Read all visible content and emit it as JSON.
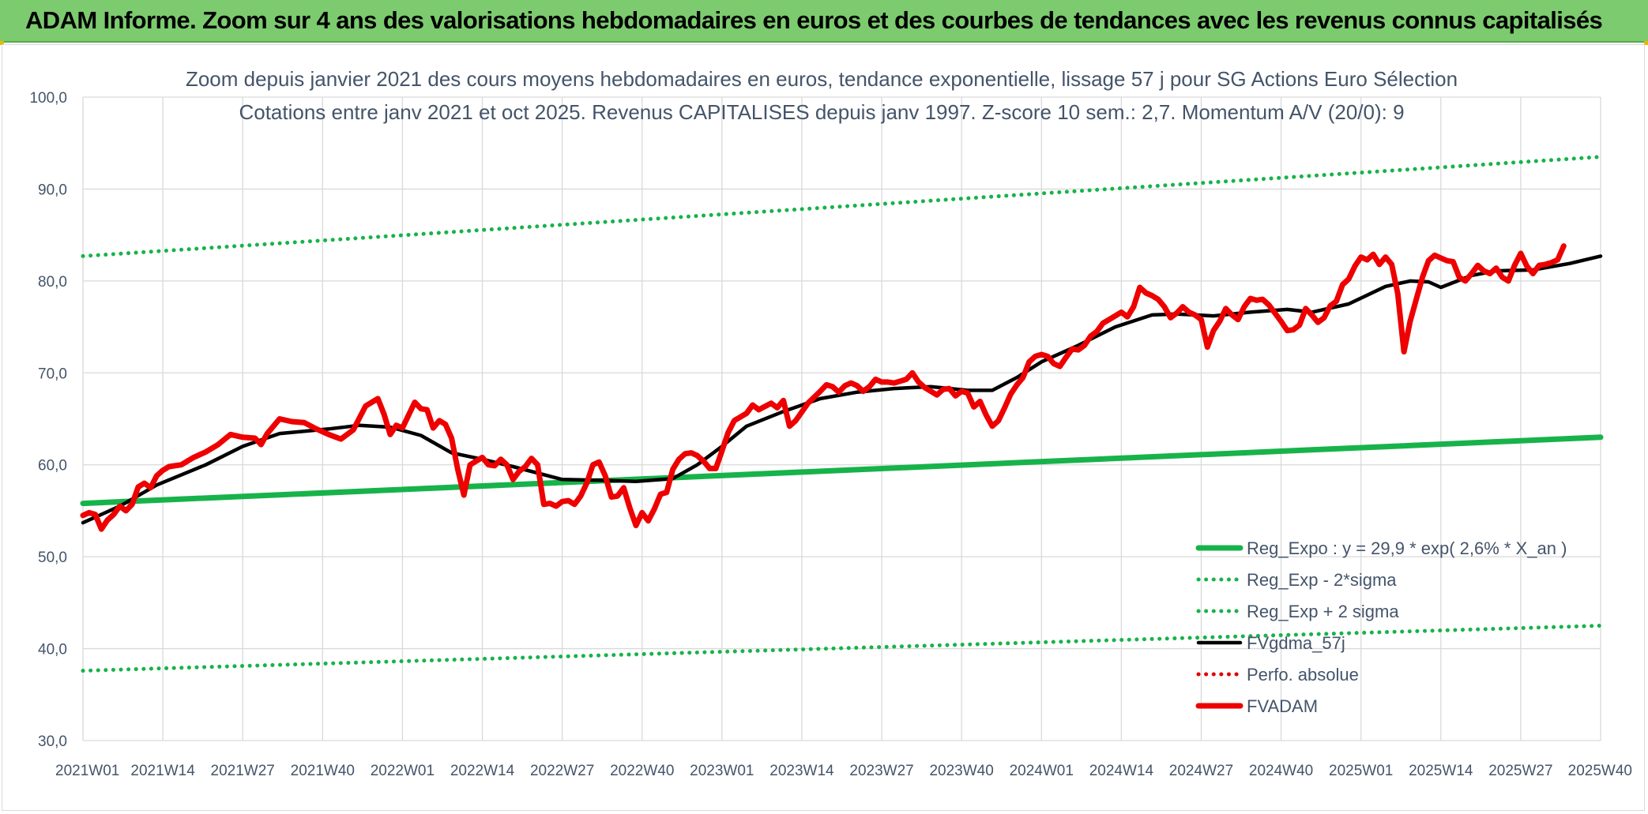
{
  "banner": {
    "title": "ADAM Informe. Zoom sur 4 ans des valorisations hebdomadaires en euros et des courbes de tendances avec les revenus connus capitalisés"
  },
  "chart_data": {
    "type": "line",
    "title": "Zoom depuis janvier 2021 des cours moyens hebdomadaires en euros, tendance exponentielle, lissage 57 j pour SG Actions Euro Sélection",
    "subtitle": "Cotations entre janv 2021 et oct 2025. Revenus CAPITALISES depuis janv 1997. Z-score 10 sem.: 2,7. Momentum A/V (20/0): 9",
    "xlabel": "",
    "ylabel": "",
    "ylim": [
      30,
      100
    ],
    "xlim": [
      0,
      247
    ],
    "y_ticks": [
      30,
      40,
      50,
      60,
      70,
      80,
      90,
      100
    ],
    "y_tick_labels": [
      "30,0",
      "40,0",
      "50,0",
      "60,0",
      "70,0",
      "80,0",
      "90,0",
      "100,0"
    ],
    "x_ticks": [
      0,
      13,
      26,
      39,
      52,
      65,
      78,
      91,
      104,
      117,
      130,
      143,
      156,
      169,
      182,
      195,
      208,
      221,
      234,
      247
    ],
    "x_tick_labels": [
      "2021W01",
      "2021W14",
      "2021W27",
      "2021W40",
      "2022W01",
      "2022W14",
      "2022W27",
      "2022W40",
      "2023W01",
      "2023W14",
      "2023W27",
      "2023W40",
      "2024W01",
      "2024W14",
      "2024W27",
      "2024W40",
      "2025W01",
      "2025W14",
      "2025W27",
      "2025W40"
    ],
    "grid": true,
    "legend_position": "bottom-right",
    "series": [
      {
        "name": "Reg_Expo : y = 29,9 * exp( 2,6% *  X_an )",
        "style": "solid-thick",
        "color": "#17b34a",
        "points": [
          [
            0,
            55.8
          ],
          [
            247,
            63.0
          ]
        ]
      },
      {
        "name": "Reg_Exp - 2*sigma",
        "style": "dotted",
        "color": "#17b34a",
        "points": [
          [
            0,
            37.6
          ],
          [
            247,
            42.5
          ]
        ]
      },
      {
        "name": "Reg_Exp + 2 sigma",
        "style": "dotted",
        "color": "#17b34a",
        "points": [
          [
            0,
            82.7
          ],
          [
            247,
            93.5
          ]
        ]
      },
      {
        "name": "FVgdma_57j",
        "style": "solid",
        "color": "#000000",
        "points": [
          [
            0,
            53.7
          ],
          [
            6,
            55.5
          ],
          [
            12,
            57.8
          ],
          [
            20,
            60.0
          ],
          [
            26,
            62.0
          ],
          [
            32,
            63.4
          ],
          [
            40,
            63.9
          ],
          [
            45,
            64.3
          ],
          [
            50,
            64.1
          ],
          [
            55,
            63.2
          ],
          [
            60,
            61.3
          ],
          [
            65,
            60.6
          ],
          [
            70,
            59.8
          ],
          [
            78,
            58.4
          ],
          [
            85,
            58.3
          ],
          [
            90,
            58.2
          ],
          [
            96,
            58.5
          ],
          [
            100,
            60.0
          ],
          [
            104,
            62.0
          ],
          [
            108,
            64.2
          ],
          [
            114,
            65.8
          ],
          [
            120,
            67.2
          ],
          [
            126,
            67.9
          ],
          [
            132,
            68.3
          ],
          [
            138,
            68.5
          ],
          [
            144,
            68.1
          ],
          [
            148,
            68.1
          ],
          [
            152,
            69.5
          ],
          [
            156,
            71.2
          ],
          [
            162,
            73.0
          ],
          [
            168,
            75.0
          ],
          [
            174,
            76.3
          ],
          [
            178,
            76.4
          ],
          [
            184,
            76.2
          ],
          [
            190,
            76.6
          ],
          [
            196,
            76.9
          ],
          [
            200,
            76.6
          ],
          [
            206,
            77.5
          ],
          [
            212,
            79.4
          ],
          [
            216,
            80.0
          ],
          [
            219,
            79.9
          ],
          [
            221,
            79.3
          ],
          [
            226,
            80.6
          ],
          [
            230,
            81.1
          ],
          [
            236,
            81.2
          ],
          [
            242,
            81.9
          ],
          [
            247,
            82.7
          ]
        ]
      },
      {
        "name": "Perfo. absolue",
        "style": "dotted",
        "color": "#e00000",
        "points": []
      },
      {
        "name": "FVADAM",
        "style": "solid-thick",
        "color": "#ee0000",
        "points": [
          [
            0,
            54.5
          ],
          [
            1,
            54.8
          ],
          [
            2,
            54.6
          ],
          [
            3,
            53.0
          ],
          [
            4,
            54.0
          ],
          [
            5,
            54.6
          ],
          [
            6,
            55.5
          ],
          [
            7,
            55.0
          ],
          [
            8,
            55.7
          ],
          [
            9,
            57.6
          ],
          [
            10,
            58.0
          ],
          [
            11,
            57.5
          ],
          [
            12,
            58.8
          ],
          [
            13,
            59.4
          ],
          [
            14,
            59.8
          ],
          [
            16,
            60.0
          ],
          [
            18,
            60.8
          ],
          [
            20,
            61.4
          ],
          [
            22,
            62.2
          ],
          [
            24,
            63.3
          ],
          [
            26,
            63.0
          ],
          [
            28,
            62.9
          ],
          [
            29,
            62.2
          ],
          [
            30,
            63.4
          ],
          [
            32,
            65.0
          ],
          [
            34,
            64.7
          ],
          [
            36,
            64.6
          ],
          [
            38,
            63.9
          ],
          [
            40,
            63.3
          ],
          [
            42,
            62.8
          ],
          [
            44,
            63.8
          ],
          [
            46,
            66.4
          ],
          [
            48,
            67.2
          ],
          [
            49,
            65.5
          ],
          [
            50,
            63.3
          ],
          [
            51,
            64.3
          ],
          [
            52,
            64.0
          ],
          [
            54,
            66.8
          ],
          [
            55,
            66.1
          ],
          [
            56,
            66.0
          ],
          [
            57,
            64.0
          ],
          [
            58,
            64.8
          ],
          [
            59,
            64.4
          ],
          [
            60,
            62.9
          ],
          [
            61,
            59.5
          ],
          [
            62,
            56.7
          ],
          [
            63,
            60.0
          ],
          [
            65,
            60.8
          ],
          [
            66,
            60.0
          ],
          [
            67,
            59.9
          ],
          [
            68,
            60.6
          ],
          [
            69,
            60.0
          ],
          [
            70,
            58.4
          ],
          [
            71,
            59.3
          ],
          [
            72,
            59.8
          ],
          [
            73,
            60.7
          ],
          [
            74,
            60.0
          ],
          [
            75,
            55.7
          ],
          [
            76,
            55.8
          ],
          [
            77,
            55.5
          ],
          [
            78,
            56.0
          ],
          [
            79,
            56.1
          ],
          [
            80,
            55.7
          ],
          [
            81,
            56.6
          ],
          [
            82,
            58.0
          ],
          [
            83,
            60.0
          ],
          [
            84,
            60.3
          ],
          [
            85,
            58.8
          ],
          [
            86,
            56.5
          ],
          [
            87,
            56.6
          ],
          [
            88,
            57.5
          ],
          [
            89,
            55.3
          ],
          [
            90,
            53.4
          ],
          [
            91,
            54.8
          ],
          [
            92,
            53.9
          ],
          [
            93,
            55.2
          ],
          [
            94,
            56.8
          ],
          [
            95,
            57.0
          ],
          [
            96,
            59.5
          ],
          [
            97,
            60.6
          ],
          [
            98,
            61.2
          ],
          [
            99,
            61.3
          ],
          [
            100,
            61.0
          ],
          [
            101,
            60.4
          ],
          [
            102,
            59.6
          ],
          [
            103,
            59.6
          ],
          [
            104,
            61.5
          ],
          [
            105,
            63.5
          ],
          [
            106,
            64.8
          ],
          [
            108,
            65.6
          ],
          [
            109,
            66.5
          ],
          [
            110,
            66.0
          ],
          [
            112,
            66.7
          ],
          [
            113,
            66.2
          ],
          [
            114,
            67.0
          ],
          [
            115,
            64.2
          ],
          [
            116,
            64.8
          ],
          [
            118,
            66.7
          ],
          [
            120,
            68.0
          ],
          [
            121,
            68.7
          ],
          [
            122,
            68.5
          ],
          [
            123,
            67.9
          ],
          [
            124,
            68.6
          ],
          [
            125,
            68.9
          ],
          [
            126,
            68.6
          ],
          [
            127,
            68.0
          ],
          [
            128,
            68.5
          ],
          [
            129,
            69.3
          ],
          [
            130,
            69.0
          ],
          [
            131,
            69.0
          ],
          [
            132,
            68.9
          ],
          [
            133,
            69.1
          ],
          [
            134,
            69.3
          ],
          [
            135,
            70.0
          ],
          [
            136,
            69.0
          ],
          [
            137,
            68.4
          ],
          [
            138,
            68.0
          ],
          [
            139,
            67.6
          ],
          [
            140,
            68.2
          ],
          [
            141,
            68.3
          ],
          [
            142,
            67.5
          ],
          [
            143,
            68.0
          ],
          [
            144,
            67.8
          ],
          [
            145,
            66.3
          ],
          [
            146,
            66.9
          ],
          [
            147,
            65.4
          ],
          [
            148,
            64.2
          ],
          [
            149,
            64.8
          ],
          [
            150,
            66.2
          ],
          [
            151,
            67.7
          ],
          [
            152,
            68.7
          ],
          [
            153,
            69.5
          ],
          [
            154,
            71.2
          ],
          [
            155,
            71.8
          ],
          [
            156,
            72.0
          ],
          [
            157,
            71.8
          ],
          [
            158,
            71.0
          ],
          [
            159,
            70.7
          ],
          [
            160,
            71.7
          ],
          [
            161,
            72.6
          ],
          [
            162,
            72.5
          ],
          [
            163,
            73.0
          ],
          [
            164,
            74.0
          ],
          [
            165,
            74.5
          ],
          [
            166,
            75.4
          ],
          [
            167,
            75.8
          ],
          [
            168,
            76.2
          ],
          [
            169,
            76.6
          ],
          [
            170,
            76.1
          ],
          [
            171,
            77.2
          ],
          [
            172,
            79.3
          ],
          [
            173,
            78.7
          ],
          [
            174,
            78.4
          ],
          [
            175,
            78.0
          ],
          [
            176,
            77.2
          ],
          [
            177,
            76.0
          ],
          [
            178,
            76.5
          ],
          [
            179,
            77.2
          ],
          [
            180,
            76.6
          ],
          [
            181,
            76.3
          ],
          [
            182,
            75.8
          ],
          [
            183,
            72.8
          ],
          [
            184,
            74.6
          ],
          [
            185,
            75.6
          ],
          [
            186,
            77.0
          ],
          [
            187,
            76.3
          ],
          [
            188,
            75.8
          ],
          [
            189,
            77.2
          ],
          [
            190,
            78.1
          ],
          [
            191,
            77.9
          ],
          [
            192,
            78.0
          ],
          [
            193,
            77.4
          ],
          [
            194,
            76.5
          ],
          [
            195,
            75.6
          ],
          [
            196,
            74.6
          ],
          [
            197,
            74.7
          ],
          [
            198,
            75.2
          ],
          [
            199,
            77.0
          ],
          [
            200,
            76.3
          ],
          [
            201,
            75.5
          ],
          [
            202,
            76.0
          ],
          [
            203,
            77.3
          ],
          [
            204,
            77.8
          ],
          [
            205,
            79.6
          ],
          [
            206,
            80.2
          ],
          [
            207,
            81.6
          ],
          [
            208,
            82.6
          ],
          [
            209,
            82.3
          ],
          [
            210,
            82.9
          ],
          [
            211,
            81.8
          ],
          [
            212,
            82.6
          ],
          [
            213,
            81.8
          ],
          [
            214,
            78.6
          ],
          [
            215,
            72.3
          ],
          [
            216,
            75.6
          ],
          [
            217,
            78.0
          ],
          [
            218,
            80.4
          ],
          [
            219,
            82.2
          ],
          [
            220,
            82.8
          ],
          [
            221,
            82.5
          ],
          [
            222,
            82.2
          ],
          [
            223,
            82.1
          ],
          [
            224,
            80.4
          ],
          [
            225,
            80.0
          ],
          [
            226,
            80.8
          ],
          [
            227,
            81.7
          ],
          [
            228,
            81.1
          ],
          [
            229,
            80.8
          ],
          [
            230,
            81.4
          ],
          [
            231,
            80.4
          ],
          [
            232,
            80.0
          ],
          [
            233,
            81.7
          ],
          [
            234,
            83.0
          ],
          [
            235,
            81.6
          ],
          [
            236,
            80.8
          ],
          [
            237,
            81.7
          ],
          [
            238,
            81.8
          ],
          [
            239,
            82.0
          ],
          [
            240,
            82.3
          ],
          [
            241,
            83.8
          ]
        ]
      }
    ]
  }
}
